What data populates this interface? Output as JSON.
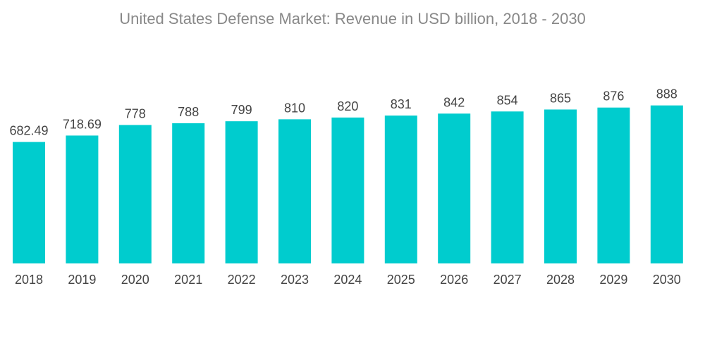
{
  "chart_data": {
    "type": "bar",
    "title": "United States Defense Market: Revenue in USD billion, 2018 - 2030",
    "categories": [
      "2018",
      "2019",
      "2020",
      "2021",
      "2022",
      "2023",
      "2024",
      "2025",
      "2026",
      "2027",
      "2028",
      "2029",
      "2030"
    ],
    "values": [
      682.49,
      718.69,
      778,
      788,
      799,
      810,
      820,
      831,
      842,
      854,
      865,
      876,
      888
    ],
    "value_labels": [
      "682.49",
      "718.69",
      "778",
      "788",
      "799",
      "810",
      "820",
      "831",
      "842",
      "854",
      "865",
      "876",
      "888"
    ],
    "xlabel": "",
    "ylabel": "",
    "ylim": [
      0,
      950
    ],
    "grid": false,
    "bar_color": "#00ccce"
  }
}
